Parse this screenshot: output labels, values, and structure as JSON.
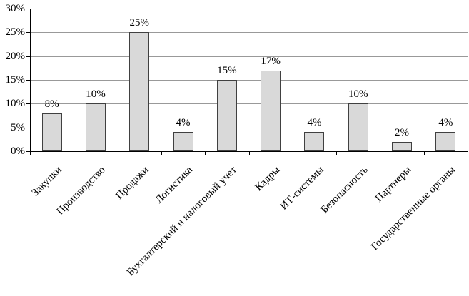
{
  "chart_data": {
    "type": "bar",
    "title": "",
    "xlabel": "",
    "ylabel": "",
    "categories": [
      "Закупки",
      "Производство",
      "Продажи",
      "Логистика",
      "Бухгалтерский и налоговый учет",
      "Кадры",
      "ИТ-системы",
      "Безопасность",
      "Партнеры",
      "Государственные органы"
    ],
    "values": [
      8,
      10,
      25,
      4,
      15,
      17,
      4,
      10,
      2,
      4
    ],
    "value_labels": [
      "8%",
      "10%",
      "25%",
      "4%",
      "15%",
      "17%",
      "4%",
      "10%",
      "2%",
      "4%"
    ],
    "ylim": [
      0,
      30
    ],
    "ytick_step": 5,
    "ytick_labels": [
      "0%",
      "5%",
      "10%",
      "15%",
      "20%",
      "25%",
      "30%"
    ],
    "grid": "horizontal",
    "legend": "none",
    "colors": {
      "background": "#ffffff",
      "bar_fill": "#d9d9d9",
      "bar_border": "#404040",
      "gridline": "#999999",
      "axis": "#000000",
      "text": "#000000"
    }
  }
}
